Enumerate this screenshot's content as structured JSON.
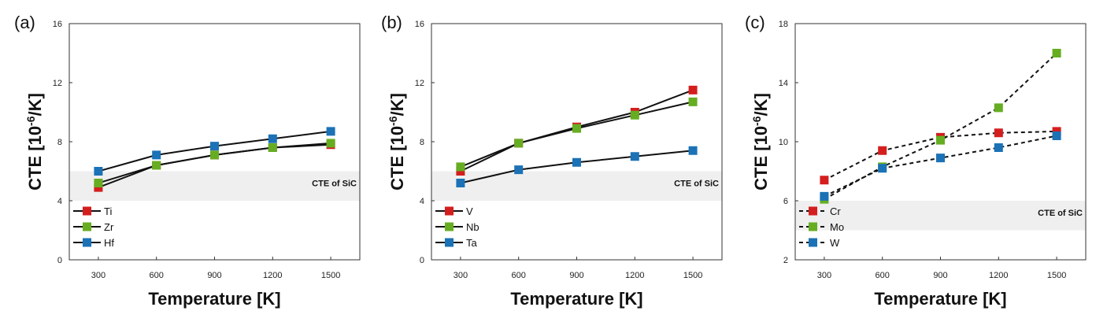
{
  "chart_data": [
    {
      "type": "line",
      "panel_label": "(a)",
      "xlabel": "Temperature [K]",
      "ylabel": "CTE [10-6/K]",
      "ylabel_parts": {
        "pre": "CTE [10",
        "sup": "-6",
        "post": "/K]"
      },
      "x": [
        300,
        600,
        900,
        1200,
        1500
      ],
      "x_ticks": [
        "300",
        "600",
        "900",
        "1200",
        "1500"
      ],
      "xlim": [
        150,
        1650
      ],
      "ylim": [
        0,
        16
      ],
      "y_ticks": [
        "0",
        "4",
        "8",
        "12",
        "16"
      ],
      "y_tick_values": [
        0,
        4,
        8,
        12,
        16
      ],
      "band": {
        "y": [
          4,
          6
        ],
        "label": "CTE of SiC",
        "color": "#efefef"
      },
      "line_style": "solid",
      "legend_position": "bottom-left",
      "series": [
        {
          "name": "Ti",
          "color": "#d41e1e",
          "values": [
            4.9,
            6.4,
            7.1,
            7.6,
            7.8
          ]
        },
        {
          "name": "Zr",
          "color": "#66ad22",
          "values": [
            5.2,
            6.4,
            7.1,
            7.6,
            7.9
          ]
        },
        {
          "name": "Hf",
          "color": "#1b72b6",
          "values": [
            6.0,
            7.1,
            7.7,
            8.2,
            8.7
          ]
        }
      ]
    },
    {
      "type": "line",
      "panel_label": "(b)",
      "xlabel": "Temperature [K]",
      "ylabel": "CTE [10-6/K]",
      "ylabel_parts": {
        "pre": "CTE [10",
        "sup": "-6",
        "post": "/K]"
      },
      "x": [
        300,
        600,
        900,
        1200,
        1500
      ],
      "x_ticks": [
        "300",
        "600",
        "900",
        "1200",
        "1500"
      ],
      "xlim": [
        150,
        1650
      ],
      "ylim": [
        0,
        16
      ],
      "y_ticks": [
        "0",
        "4",
        "8",
        "12",
        "16"
      ],
      "y_tick_values": [
        0,
        4,
        8,
        12,
        16
      ],
      "band": {
        "y": [
          4,
          6
        ],
        "label": "CTE of SiC",
        "color": "#efefef"
      },
      "line_style": "solid",
      "legend_position": "bottom-left",
      "series": [
        {
          "name": "V",
          "color": "#d41e1e",
          "values": [
            6.0,
            7.9,
            9.0,
            10.0,
            11.5
          ]
        },
        {
          "name": "Nb",
          "color": "#66ad22",
          "values": [
            6.3,
            7.9,
            8.9,
            9.8,
            10.7
          ]
        },
        {
          "name": "Ta",
          "color": "#1b72b6",
          "values": [
            5.2,
            6.1,
            6.6,
            7.0,
            7.4
          ]
        }
      ]
    },
    {
      "type": "line",
      "panel_label": "(c)",
      "xlabel": "Temperature [K]",
      "ylabel": "CTE [10-6/K]",
      "ylabel_parts": {
        "pre": "CTE [10",
        "sup": "-6",
        "post": "/K]"
      },
      "x": [
        300,
        600,
        900,
        1200,
        1500
      ],
      "x_ticks": [
        "300",
        "600",
        "900",
        "1200",
        "1500"
      ],
      "xlim": [
        150,
        1650
      ],
      "ylim": [
        2,
        18
      ],
      "y_ticks": [
        "2",
        "6",
        "10",
        "14",
        "18"
      ],
      "y_tick_values": [
        2,
        6,
        10,
        14,
        18
      ],
      "band": {
        "y": [
          4,
          6
        ],
        "label": "CTE of SiC",
        "color": "#efefef"
      },
      "line_style": "dashed",
      "legend_position": "bottom-left",
      "series": [
        {
          "name": "Cr",
          "color": "#d41e1e",
          "values": [
            7.4,
            9.4,
            10.3,
            10.6,
            10.7
          ]
        },
        {
          "name": "Mo",
          "color": "#66ad22",
          "values": [
            6.1,
            8.3,
            10.1,
            12.3,
            16.0
          ]
        },
        {
          "name": "W",
          "color": "#1b72b6",
          "values": [
            6.3,
            8.2,
            8.9,
            9.6,
            10.4
          ]
        }
      ]
    }
  ]
}
